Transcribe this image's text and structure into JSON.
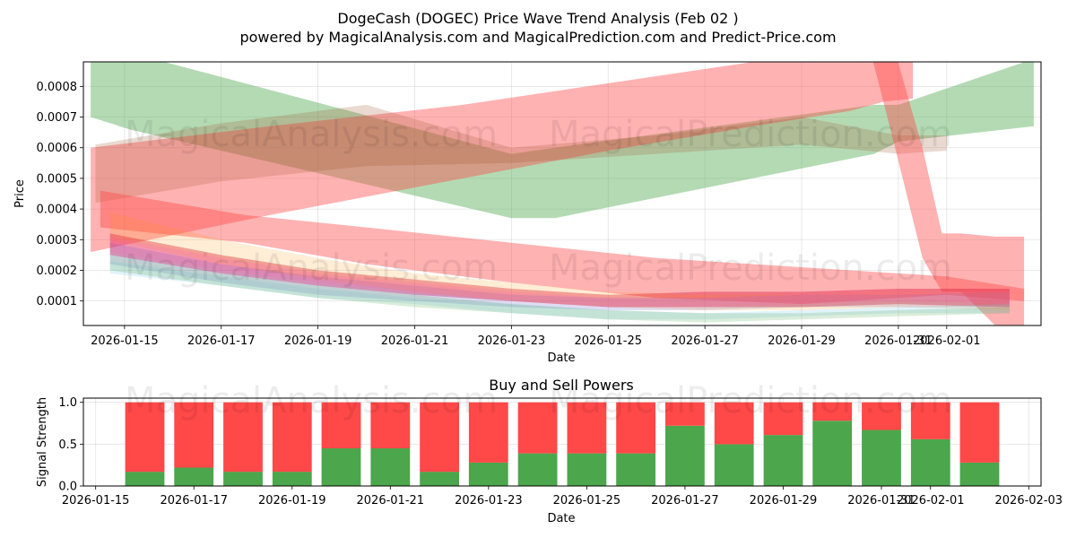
{
  "title": "DogeCash (DOGEC) Price Wave Trend Analysis (Feb 02 )",
  "subtitle": "powered by MagicalAnalysis.com and MagicalPrediction.com and Predict-Price.com",
  "watermarks": [
    "MagicalAnalysis.com",
    "MagicalPrediction.com"
  ],
  "colors": {
    "green": "#4ca64c",
    "red": "#ff4848",
    "band_green": "#b2d9b2",
    "band_red": "#ffb0b0",
    "band_brown": "#c08a6e"
  },
  "chart_data": [
    {
      "type": "area",
      "title": "",
      "xlabel": "Date",
      "ylabel": "Price",
      "x_tick_labels": [
        "2026-01-15",
        "2026-01-17",
        "2026-01-19",
        "2026-01-21",
        "2026-01-23",
        "2026-01-25",
        "2026-01-27",
        "2026-01-29",
        "2026-01-31",
        "2026-02-01"
      ],
      "x_tick_days": [
        0,
        2,
        4,
        6,
        8,
        10,
        12,
        14,
        16,
        17
      ],
      "y_tick_labels": [
        "0.0001",
        "0.0002",
        "0.0003",
        "0.0004",
        "0.0005",
        "0.0006",
        "0.0007",
        "0.0008"
      ],
      "y_ticks": [
        0.0001,
        0.0002,
        0.0003,
        0.0004,
        0.0005,
        0.0006,
        0.0007,
        0.0008
      ],
      "xlim_days": [
        -0.85,
        18.95
      ],
      "ylim": [
        2e-05,
        0.00088
      ],
      "grid": true,
      "bands": [
        {
          "name": "green wave",
          "color": "#4ca64c",
          "opacity": 0.42,
          "x": [
            -0.7,
            0.1,
            8.0,
            8.9,
            15.5,
            16.0,
            18.8
          ],
          "upper": [
            0.00091,
            0.00091,
            0.00058,
            0.0006,
            0.00074,
            0.00074,
            0.00089
          ],
          "lower": [
            0.0007,
            0.00066,
            0.00037,
            0.00037,
            0.00058,
            0.00062,
            0.00067
          ]
        },
        {
          "name": "red rising wave",
          "color": "#ff4848",
          "opacity": 0.42,
          "x": [
            -0.7,
            3.0,
            7.0,
            10.0,
            13.0,
            15.0,
            15.7,
            16.3
          ],
          "upper": [
            0.0006,
            0.00067,
            0.00074,
            0.00081,
            0.00088,
            0.00091,
            0.00093,
            0.00093
          ],
          "lower": [
            0.00026,
            0.00038,
            0.0005,
            0.00059,
            0.00067,
            0.00072,
            0.00075,
            0.00076
          ]
        },
        {
          "name": "brown falling wave",
          "color": "#a0522d",
          "opacity": 0.22,
          "x": [
            -0.6,
            2.0,
            5.0,
            8.0,
            11.0,
            14.0,
            16.0,
            17.0
          ],
          "upper": [
            0.00061,
            0.00068,
            0.00074,
            0.0006,
            0.00064,
            0.0007,
            0.00064,
            0.00064
          ],
          "lower": [
            0.00042,
            0.00049,
            0.00054,
            0.00055,
            0.00058,
            0.00061,
            0.00058,
            0.00059
          ]
        },
        {
          "name": "red collapse wave",
          "color": "#ff4848",
          "opacity": 0.42,
          "x": [
            15.4,
            15.9,
            16.5,
            16.9,
            17.3,
            18.0,
            18.6
          ],
          "upper": [
            0.00093,
            0.00093,
            0.0006,
            0.00032,
            0.00032,
            0.00031,
            0.00031
          ],
          "lower": [
            0.00093,
            0.00062,
            0.00024,
            0.00013,
            0.00013,
            2e-05,
            2e-05
          ]
        },
        {
          "name": "red lower wave",
          "color": "#ff4848",
          "opacity": 0.42,
          "x": [
            -0.5,
            2.5,
            5.0,
            8.0,
            11.0,
            14.0,
            17.0,
            18.6
          ],
          "upper": [
            0.00046,
            0.00038,
            0.00034,
            0.00029,
            0.00024,
            0.00021,
            0.00018,
            0.00014
          ],
          "lower": [
            0.00034,
            0.00029,
            0.00022,
            0.00016,
            0.00011,
            9e-05,
            0.00012,
            0.0001
          ]
        },
        {
          "name": "red core wave",
          "color": "#dc143c",
          "opacity": 0.4,
          "x": [
            -0.3,
            2.0,
            4.0,
            6.0,
            8.0,
            10.0,
            12.0,
            14.0,
            16.0,
            18.3
          ],
          "upper": [
            0.00032,
            0.00025,
            0.0002,
            0.00017,
            0.00014,
            0.00012,
            0.00013,
            0.00013,
            0.00014,
            0.00014
          ],
          "lower": [
            0.00025,
            0.00019,
            0.00015,
            0.00012,
            0.0001,
            8e-05,
            8e-05,
            8e-05,
            9e-05,
            8e-05
          ]
        },
        {
          "name": "purple wave",
          "color": "#6a5acd",
          "opacity": 0.22,
          "x": [
            -0.3,
            2.0,
            4.0,
            6.0,
            8.0,
            10.0,
            12.0,
            14.0,
            16.0,
            18.3
          ],
          "upper": [
            0.00029,
            0.00022,
            0.00018,
            0.00015,
            0.00012,
            0.00011,
            0.00011,
            0.00012,
            0.00012,
            0.00013
          ],
          "lower": [
            0.00022,
            0.00016,
            0.00012,
            0.0001,
            8e-05,
            7e-05,
            7e-05,
            8e-05,
            8e-05,
            8e-05
          ]
        },
        {
          "name": "orange wave",
          "color": "#ff8c00",
          "opacity": 0.16,
          "x": [
            -0.3,
            2.0,
            4.0,
            6.0,
            8.0,
            10.0,
            12.0,
            14.0,
            16.0,
            18.3
          ],
          "upper": [
            0.00039,
            0.0003,
            0.00024,
            0.00019,
            0.00016,
            0.00013,
            0.00012,
            0.00012,
            0.00013,
            0.00013
          ],
          "lower": [
            0.0003,
            0.00022,
            0.00017,
            0.00013,
            0.0001,
            8e-05,
            7e-05,
            7e-05,
            8e-05,
            7e-05
          ]
        },
        {
          "name": "light blue wave",
          "color": "#87ceeb",
          "opacity": 0.25,
          "x": [
            -0.3,
            2.0,
            4.0,
            6.0,
            8.0,
            10.0,
            12.0,
            14.0,
            16.0,
            18.3
          ],
          "upper": [
            0.00023,
            0.00018,
            0.00014,
            0.00011,
            9e-05,
            7e-05,
            6e-05,
            7e-05,
            8e-05,
            9e-05
          ],
          "lower": [
            0.00019,
            0.00015,
            0.00011,
            9e-05,
            6e-05,
            4e-05,
            4e-05,
            5e-05,
            6e-05,
            6e-05
          ]
        },
        {
          "name": "pale green wave",
          "color": "#4ca64c",
          "opacity": 0.2,
          "x": [
            -0.3,
            2.0,
            4.0,
            6.0,
            8.0,
            10.0,
            12.0,
            14.0,
            16.0,
            18.3
          ],
          "upper": [
            0.00025,
            0.00019,
            0.00015,
            0.00012,
            9e-05,
            7e-05,
            6e-05,
            6e-05,
            7e-05,
            8e-05
          ],
          "lower": [
            0.0002,
            0.00015,
            0.00011,
            8e-05,
            6e-05,
            4e-05,
            3e-05,
            4e-05,
            5e-05,
            6e-05
          ]
        },
        {
          "name": "pink wave",
          "color": "#ff69b4",
          "opacity": 0.22,
          "x": [
            -0.3,
            2.0,
            4.0,
            6.0,
            8.0,
            10.0,
            12.0,
            14.0,
            16.0,
            18.3
          ],
          "upper": [
            0.00031,
            0.00024,
            0.00019,
            0.00016,
            0.00013,
            0.00011,
            0.00011,
            0.00012,
            0.00013,
            0.00013
          ],
          "lower": [
            0.00026,
            0.0002,
            0.00016,
            0.00013,
            0.0001,
            8e-05,
            8e-05,
            9e-05,
            0.0001,
            9e-05
          ]
        }
      ]
    },
    {
      "type": "bar",
      "title": "Buy and Sell Powers",
      "xlabel": "Date",
      "ylabel": "Signal Strength",
      "x_tick_labels": [
        "2026-01-15",
        "2026-01-17",
        "2026-01-19",
        "2026-01-21",
        "2026-01-23",
        "2026-01-25",
        "2026-01-27",
        "2026-01-29",
        "2026-01-31",
        "2026-02-01",
        "2026-02-03"
      ],
      "x_tick_days": [
        0,
        2,
        4,
        6,
        8,
        10,
        12,
        14,
        16,
        17,
        19
      ],
      "y_tick_labels": [
        "0.0",
        "0.5",
        "1.0"
      ],
      "y_ticks": [
        0.0,
        0.5,
        1.0
      ],
      "xlim_days": [
        -0.25,
        19.25
      ],
      "ylim": [
        0,
        1.05
      ],
      "grid": true,
      "bar_days": [
        1,
        2,
        3,
        4,
        5,
        6,
        7,
        8,
        9,
        10,
        11,
        12,
        13,
        14,
        15,
        16,
        17,
        18
      ],
      "series": [
        {
          "name": "Buy",
          "color": "#4ca64c",
          "values": [
            0.17,
            0.22,
            0.17,
            0.17,
            0.45,
            0.45,
            0.17,
            0.28,
            0.39,
            0.39,
            0.39,
            0.72,
            0.5,
            0.61,
            0.78,
            0.67,
            0.56,
            0.28
          ]
        },
        {
          "name": "Sell",
          "color": "#ff4848",
          "values": [
            0.83,
            0.78,
            0.83,
            0.83,
            0.55,
            0.55,
            0.83,
            0.72,
            0.61,
            0.61,
            0.61,
            0.28,
            0.5,
            0.39,
            0.22,
            0.33,
            0.44,
            0.72
          ]
        }
      ]
    }
  ]
}
